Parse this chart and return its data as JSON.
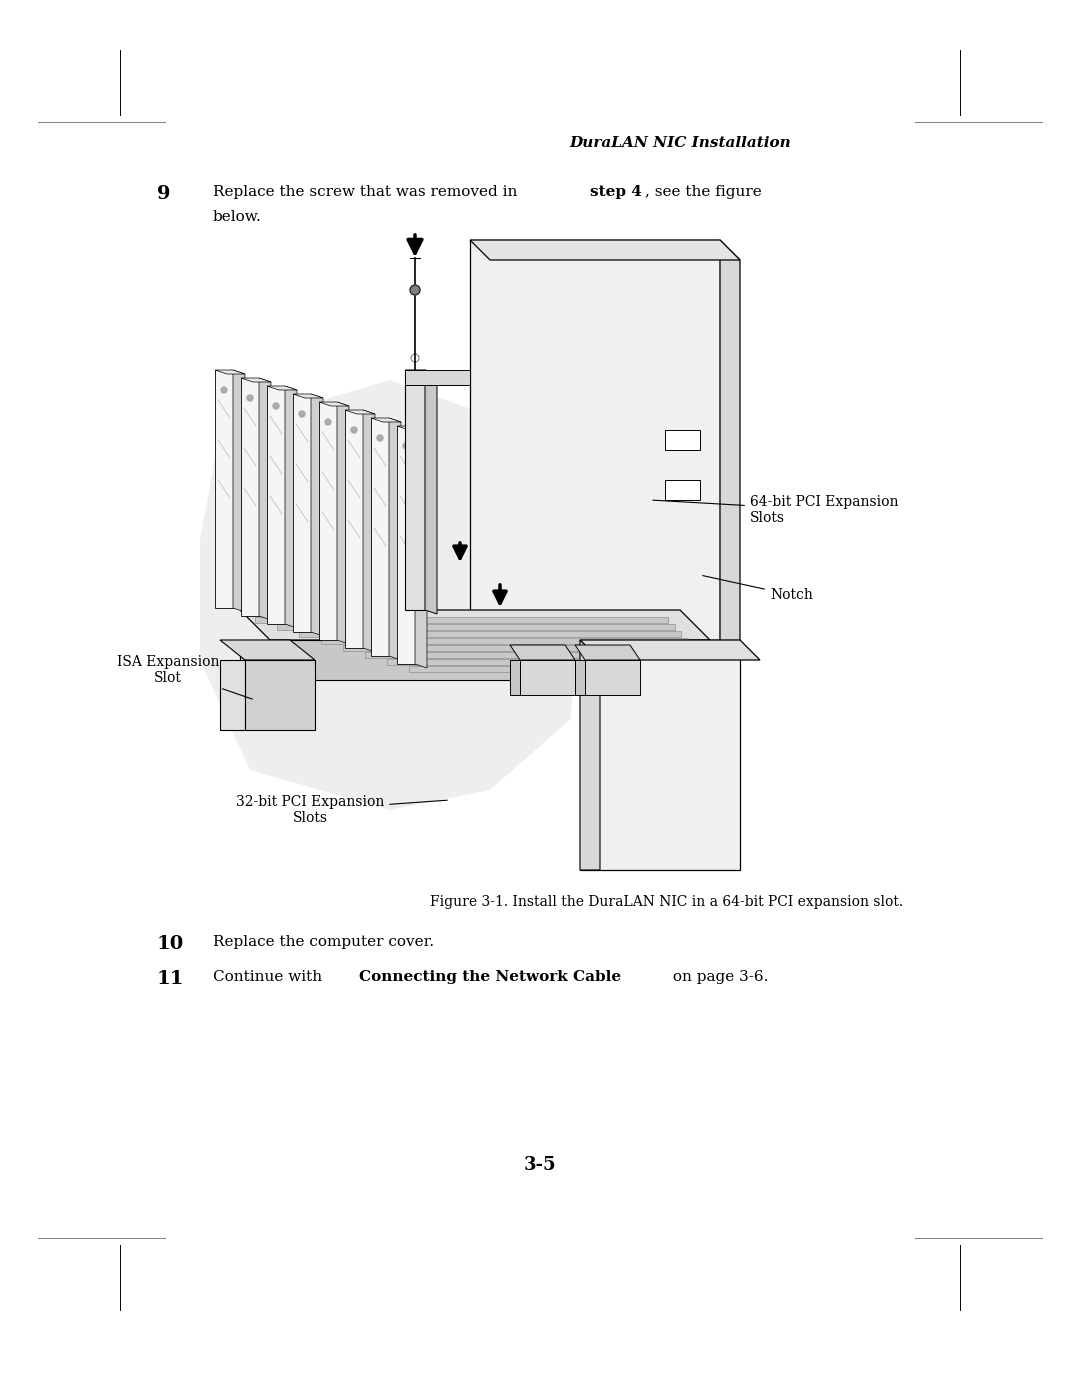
{
  "bg_color": "#ffffff",
  "text_color": "#000000",
  "page_width": 10.8,
  "page_height": 13.97,
  "header_title": "DuraLAN NIC Installation",
  "figure_caption": "Figure 3-1. Install the DuraLAN NIC in a 64-bit PCI expansion slot.",
  "step10_text": "Replace the computer cover.",
  "step11_bold": "Connecting the Network Cable",
  "page_num": "3-5",
  "label_64bit": "64-bit PCI Expansion\nSlots",
  "label_notch": "Notch",
  "label_isa": "ISA Expansion\nSlot",
  "label_32bit": "32-bit PCI Expansion\nSlots"
}
